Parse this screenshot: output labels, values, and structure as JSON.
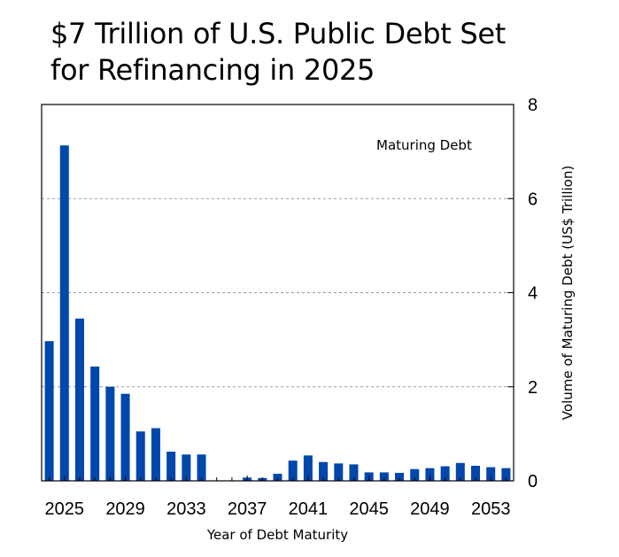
{
  "title_lines": [
    "$7 Trillion of U.S. Public Debt Set",
    "for Refinancing in 2025"
  ],
  "chart_data": {
    "type": "bar",
    "title": "$7 Trillion of U.S. Public Debt Set for Refinancing in 2025",
    "xlabel": "Year of Debt Maturity",
    "ylabel": "Volume of Maturing Debt (US$ Trillion)",
    "y_axis_side": "right",
    "ylim": [
      0,
      8
    ],
    "y_ticks": [
      0,
      2,
      4,
      6,
      8
    ],
    "x_ticks": [
      2025,
      2029,
      2033,
      2037,
      2041,
      2045,
      2049,
      2053
    ],
    "legend": [
      "Maturing Debt"
    ],
    "legend_position": "top-right",
    "grid": "horizontal dashed",
    "color": "#0047AB",
    "categories": [
      2024,
      2025,
      2026,
      2027,
      2028,
      2029,
      2030,
      2031,
      2032,
      2033,
      2034,
      2035,
      2036,
      2037,
      2038,
      2039,
      2040,
      2041,
      2042,
      2043,
      2044,
      2045,
      2046,
      2047,
      2048,
      2049,
      2050,
      2051,
      2052,
      2053,
      2054
    ],
    "values": [
      2.97,
      7.13,
      3.45,
      2.43,
      2.0,
      1.85,
      1.05,
      1.12,
      0.62,
      0.56,
      0.56,
      0,
      0,
      0.07,
      0.06,
      0.15,
      0.43,
      0.54,
      0.4,
      0.37,
      0.35,
      0.18,
      0.18,
      0.17,
      0.25,
      0.27,
      0.31,
      0.38,
      0.32,
      0.29,
      0.27
    ]
  }
}
